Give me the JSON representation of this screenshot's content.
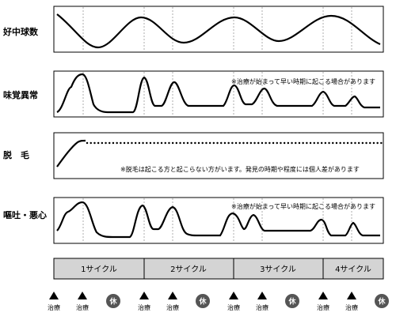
{
  "rows": [
    {
      "id": "wbc",
      "label": "好中球数",
      "note": ""
    },
    {
      "id": "taste",
      "label": "味覚異常",
      "note": "※治療が始まって早い時期に起こる場合があります"
    },
    {
      "id": "hair",
      "label": "脱　毛",
      "note": "※脱毛は起こる方と起こらない方がいます。発見の時期や程度には個人差があります"
    },
    {
      "id": "nausea",
      "label": "嘔吐・悪心",
      "note": "※治療が始まって早い時期に起こる場合があります"
    }
  ],
  "cycles": [
    "1サイクル",
    "2サイクル",
    "3サイクル",
    "4サイクル"
  ],
  "markers": {
    "treatment_label": "治療",
    "rest_label": "休",
    "sequence": [
      "treatment",
      "treatment",
      "rest",
      "treatment",
      "treatment",
      "rest",
      "treatment",
      "treatment",
      "rest",
      "treatment",
      "treatment",
      "rest"
    ]
  },
  "colors": {
    "cycle_bar_fill": "#d4d4d4",
    "rest_circle_fill": "#555555",
    "line": "#000000"
  }
}
